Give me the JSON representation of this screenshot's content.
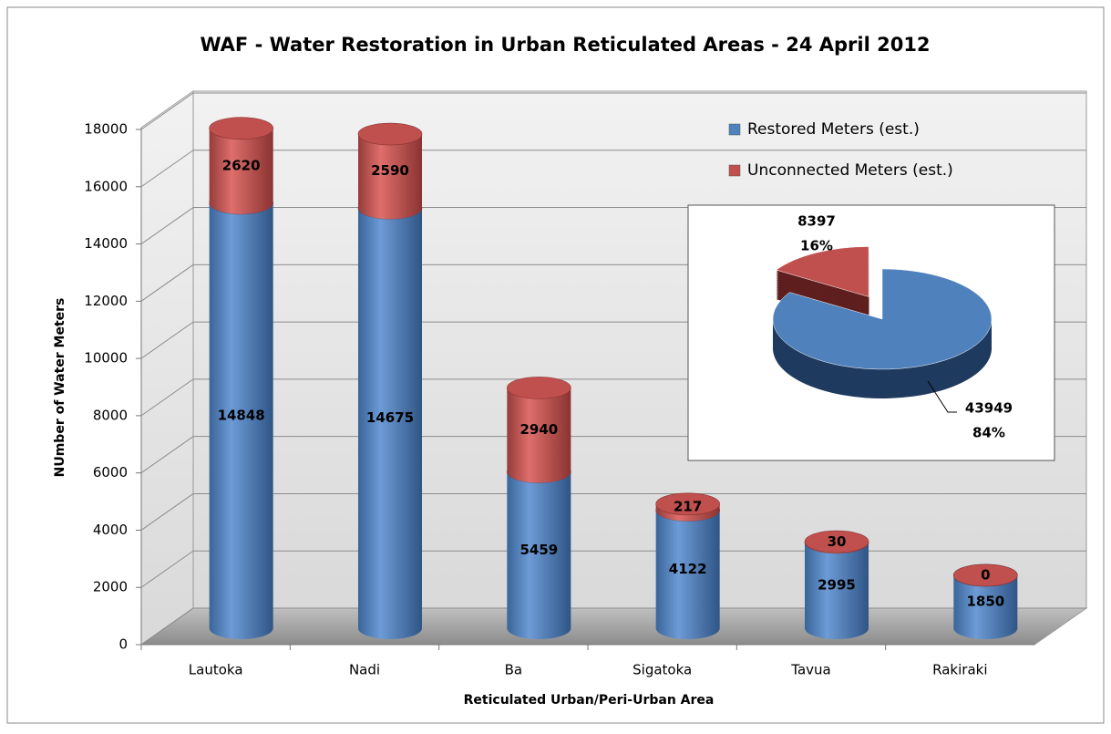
{
  "chart_data": [
    {
      "type": "bar3d",
      "title": "WAF - Water Restoration in Urban Reticulated Areas - 24 April 2012",
      "x_label": "Reticulated Urban/Peri-Urban Area",
      "y_label": "NUmber of Water Meters",
      "categories": [
        "Lautoka",
        "Nadi",
        "Ba",
        "Sigatoka",
        "Tavua",
        "Rakiraki"
      ],
      "series": [
        {
          "name": "Restored Meters (est.)",
          "color": "#4f81bd",
          "values": [
            14848,
            14675,
            5459,
            4122,
            2995,
            1850
          ]
        },
        {
          "name": "Unconnected Meters (est.)",
          "color": "#c0504d",
          "values": [
            2620,
            2590,
            2940,
            217,
            30,
            0
          ]
        }
      ],
      "stacked": true,
      "ylim": [
        0,
        18000
      ],
      "yticks": [
        0,
        2000,
        4000,
        6000,
        8000,
        10000,
        12000,
        14000,
        16000,
        18000
      ],
      "grid": true,
      "legend": "upper right"
    },
    {
      "type": "pie",
      "values": [
        43949,
        8397
      ],
      "shares": [
        84,
        16
      ],
      "share_labels": [
        "84%",
        "16%"
      ],
      "colors": [
        "#4f81bd",
        "#c0504d"
      ],
      "exploded": [
        false,
        true
      ]
    }
  ]
}
